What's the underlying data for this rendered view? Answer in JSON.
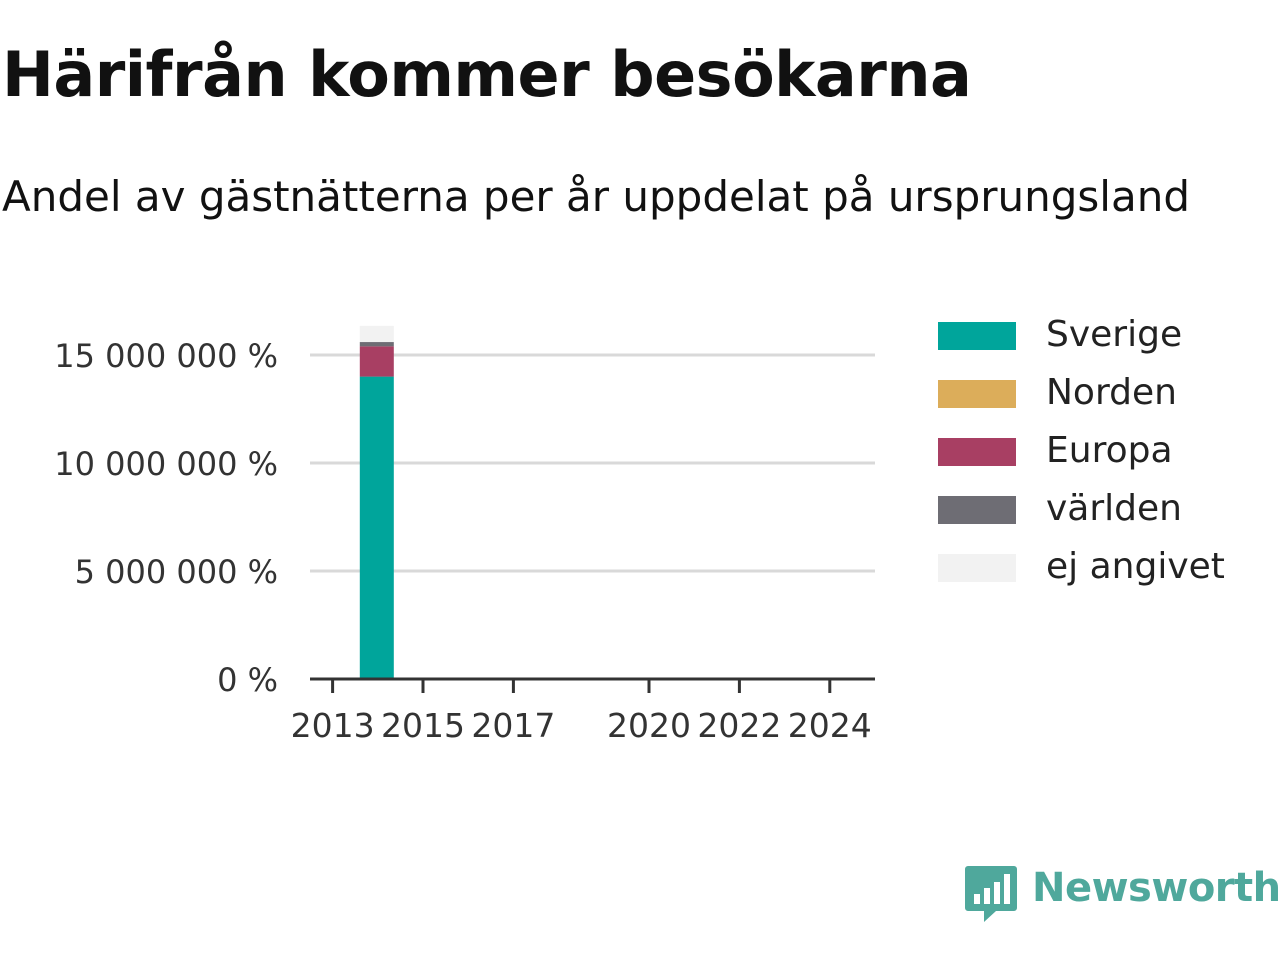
{
  "title": "Härifrån kommer besökarna",
  "subtitle": "Andel av gästnätterna per år uppdelat på ursprungsland",
  "brand": {
    "name": "Newsworthy",
    "icon": "newsworthy-logo-icon",
    "color": "#4fa89c"
  },
  "chart_data": {
    "type": "bar",
    "stacked": true,
    "title": "Härifrån kommer besökarna",
    "subtitle": "Andel av gästnätterna per år uppdelat på ursprungsland",
    "xlabel": "",
    "ylabel": "",
    "x_ticks": [
      "2013",
      "2015",
      "2017",
      "2020",
      "2022",
      "2024"
    ],
    "x_range": [
      2012.5,
      2025
    ],
    "y_ticks": [
      "0 %",
      "5 000 000 %",
      "10 000 000 %",
      "15 000 000 %"
    ],
    "y_tick_values": [
      0,
      5000000,
      10000000,
      15000000
    ],
    "ylim": [
      0,
      15000000
    ],
    "grid": true,
    "legend_position": "right",
    "categories": [
      "2014"
    ],
    "series": [
      {
        "name": "Sverige",
        "color": "#00a59b",
        "values": [
          14000000
        ]
      },
      {
        "name": "Norden",
        "color": "#dcad5a",
        "values": [
          0
        ]
      },
      {
        "name": "Europa",
        "color": "#a83f63",
        "values": [
          1400000
        ]
      },
      {
        "name": "världen",
        "color": "#6e6d74",
        "values": [
          200000
        ]
      },
      {
        "name": "ej angivet",
        "color": "#f2f2f2",
        "values": [
          750000
        ]
      }
    ]
  }
}
